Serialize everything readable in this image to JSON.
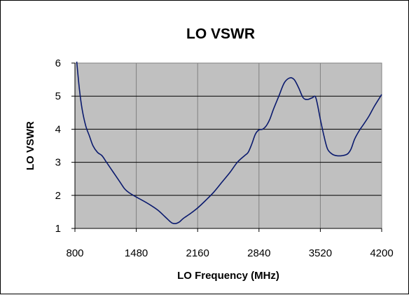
{
  "chart_data": {
    "type": "line",
    "title": "LO VSWR",
    "xlabel": "LO Frequency  (MHz)",
    "ylabel": "LO VSWR",
    "xlim": [
      800,
      4200
    ],
    "ylim": [
      1,
      6
    ],
    "x_ticks": [
      "800",
      "1480",
      "2160",
      "2840",
      "3520",
      "4200"
    ],
    "y_ticks": [
      "1",
      "2",
      "3",
      "4",
      "5",
      "6"
    ],
    "grid": true,
    "legend": "none",
    "plot_background": "#c0c0c0",
    "line_color": "#0a1a6e",
    "series": [
      {
        "x": [
          820,
          850,
          880,
          920,
          960,
          1000,
          1050,
          1100,
          1150,
          1200,
          1250,
          1300,
          1350,
          1400,
          1480,
          1560,
          1640,
          1720,
          1800,
          1850,
          1880,
          1920,
          1960,
          2000,
          2080,
          2160,
          2250,
          2340,
          2430,
          2520,
          2600,
          2680,
          2720,
          2760,
          2800,
          2840,
          2880,
          2920,
          2960,
          3000,
          3060,
          3120,
          3180,
          3230,
          3280,
          3330,
          3380,
          3430,
          3470,
          3520,
          3560,
          3600,
          3650,
          3700,
          3760,
          3820,
          3860,
          3900,
          3950,
          4000,
          4060,
          4120,
          4200
        ],
        "y": [
          6.1,
          5.2,
          4.6,
          4.1,
          3.8,
          3.5,
          3.3,
          3.2,
          3.0,
          2.8,
          2.6,
          2.4,
          2.2,
          2.08,
          1.95,
          1.83,
          1.7,
          1.55,
          1.35,
          1.22,
          1.16,
          1.15,
          1.2,
          1.3,
          1.45,
          1.62,
          1.85,
          2.1,
          2.4,
          2.7,
          3.0,
          3.2,
          3.3,
          3.55,
          3.85,
          3.98,
          4.0,
          4.1,
          4.3,
          4.6,
          5.0,
          5.4,
          5.55,
          5.5,
          5.25,
          4.95,
          4.9,
          4.95,
          4.95,
          4.3,
          3.8,
          3.4,
          3.25,
          3.2,
          3.2,
          3.25,
          3.4,
          3.7,
          3.95,
          4.15,
          4.4,
          4.7,
          5.05
        ]
      }
    ]
  }
}
